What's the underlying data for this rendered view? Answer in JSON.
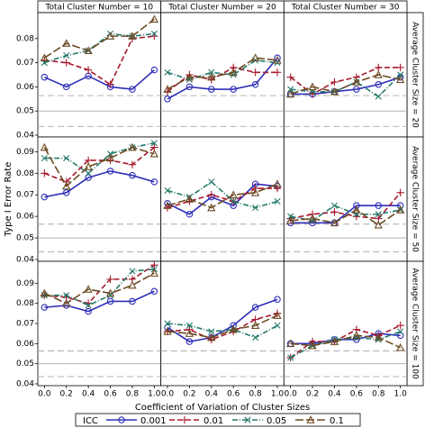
{
  "chart_data": {
    "type": "line",
    "ylabel": "Type I Error Rate",
    "xlabel": "Coefficient of Variation of Cluster Sizes",
    "legend_title": "ICC",
    "x": [
      0,
      0.2,
      0.4,
      0.6,
      0.8,
      1.0
    ],
    "xlim": [
      -0.06,
      1.06
    ],
    "xticks": [
      {
        "value": 0,
        "label": "0.0"
      },
      {
        "value": 0.2,
        "label": "0.2"
      },
      {
        "value": 0.4,
        "label": "0.4"
      },
      {
        "value": 0.6,
        "label": "0.6"
      },
      {
        "value": 0.8,
        "label": "0.8"
      },
      {
        "value": 1.0,
        "label": "1.0"
      }
    ],
    "reference_lines": [
      {
        "value": 0.05,
        "style": "solid"
      },
      {
        "value": 0.0436,
        "style": "dashed"
      },
      {
        "value": 0.0564,
        "style": "dashed"
      }
    ],
    "series": [
      {
        "name": "0.001",
        "color": "#2e2eb8",
        "marker": "circle",
        "line_style": "solid"
      },
      {
        "name": "0.01",
        "color": "#a8182e",
        "marker": "plus",
        "line_style": "dashed"
      },
      {
        "name": "0.05",
        "color": "#267a6c",
        "marker": "x",
        "line_style": "dashdot"
      },
      {
        "name": "0.1",
        "color": "#6b4a22",
        "marker": "triangle",
        "line_style": "longdash"
      }
    ],
    "columns": [
      "Total Cluster Number = 10",
      "Total Cluster Number = 20",
      "Total Cluster Number = 30"
    ],
    "rows": [
      {
        "label": "Average Cluster Size = 20",
        "ylim": [
          0.04,
          0.09
        ],
        "yticks": [
          0.04,
          0.05,
          0.06,
          0.07,
          0.08
        ],
        "panels": [
          {
            "series": [
              {
                "values": [
                  0.064,
                  0.06,
                  0.0645,
                  0.06,
                  0.059,
                  0.067
                ]
              },
              {
                "values": [
                  0.071,
                  0.07,
                  0.067,
                  0.061,
                  0.08,
                  0.081
                ]
              },
              {
                "values": [
                  0.07,
                  0.073,
                  0.075,
                  0.082,
                  0.081,
                  0.082
                ]
              },
              {
                "values": [
                  0.072,
                  0.078,
                  0.075,
                  0.081,
                  0.081,
                  0.088
                ]
              }
            ]
          },
          {
            "series": [
              {
                "values": [
                  0.055,
                  0.06,
                  0.059,
                  0.059,
                  0.061,
                  0.072
                ]
              },
              {
                "values": [
                  0.058,
                  0.065,
                  0.063,
                  0.068,
                  0.066,
                  0.066
                ]
              },
              {
                "values": [
                  0.066,
                  0.063,
                  0.066,
                  0.065,
                  0.071,
                  0.07
                ]
              },
              {
                "values": [
                  0.059,
                  0.064,
                  0.064,
                  0.066,
                  0.072,
                  0.071
                ]
              }
            ]
          },
          {
            "series": [
              {
                "values": [
                  0.057,
                  0.057,
                  0.058,
                  0.059,
                  0.061,
                  0.064
                ]
              },
              {
                "values": [
                  0.064,
                  0.057,
                  0.062,
                  0.064,
                  0.068,
                  0.068
                ]
              },
              {
                "values": [
                  0.059,
                  0.058,
                  0.058,
                  0.062,
                  0.056,
                  0.065
                ]
              },
              {
                "values": [
                  0.057,
                  0.06,
                  0.058,
                  0.062,
                  0.065,
                  0.063
                ]
              }
            ]
          }
        ]
      },
      {
        "label": "Average Cluster Size = 50",
        "ylim": [
          0.04,
          0.096
        ],
        "yticks": [
          0.04,
          0.05,
          0.06,
          0.07,
          0.08,
          0.09
        ],
        "panels": [
          {
            "series": [
              {
                "values": [
                  0.069,
                  0.071,
                  0.078,
                  0.081,
                  0.079,
                  0.076
                ]
              },
              {
                "values": [
                  0.08,
                  0.076,
                  0.086,
                  0.086,
                  0.084,
                  0.092
                ]
              },
              {
                "values": [
                  0.087,
                  0.087,
                  0.08,
                  0.089,
                  0.092,
                  0.094
                ]
              },
              {
                "values": [
                  0.092,
                  0.074,
                  0.083,
                  0.087,
                  0.092,
                  0.089
                ]
              }
            ]
          },
          {
            "series": [
              {
                "values": [
                  0.066,
                  0.061,
                  0.069,
                  0.065,
                  0.075,
                  0.074
                ]
              },
              {
                "values": [
                  0.064,
                  0.067,
                  0.07,
                  0.067,
                  0.073,
                  0.073
                ]
              },
              {
                "values": [
                  0.072,
                  0.069,
                  0.076,
                  0.067,
                  0.064,
                  0.067
                ]
              },
              {
                "values": [
                  0.065,
                  0.068,
                  0.064,
                  0.07,
                  0.071,
                  0.075
                ]
              }
            ]
          },
          {
            "series": [
              {
                "values": [
                  0.057,
                  0.057,
                  0.057,
                  0.065,
                  0.065,
                  0.065
                ]
              },
              {
                "values": [
                  0.059,
                  0.061,
                  0.062,
                  0.06,
                  0.059,
                  0.071
                ]
              },
              {
                "values": [
                  0.06,
                  0.058,
                  0.065,
                  0.061,
                  0.061,
                  0.063
                ]
              },
              {
                "values": [
                  0.058,
                  0.059,
                  0.057,
                  0.063,
                  0.056,
                  0.063
                ]
              }
            ]
          }
        ]
      },
      {
        "label": "Average Cluster Size = 100",
        "ylim": [
          0.04,
          0.1
        ],
        "yticks": [
          0.04,
          0.05,
          0.06,
          0.07,
          0.08,
          0.09
        ],
        "panels": [
          {
            "series": [
              {
                "values": [
                  0.078,
                  0.079,
                  0.076,
                  0.081,
                  0.081,
                  0.086
                ]
              },
              {
                "values": [
                  0.084,
                  0.083,
                  0.08,
                  0.092,
                  0.092,
                  0.099
                ]
              },
              {
                "values": [
                  0.084,
                  0.084,
                  0.079,
                  0.084,
                  0.096,
                  0.097
                ]
              },
              {
                "values": [
                  0.085,
                  0.08,
                  0.087,
                  0.085,
                  0.089,
                  0.095
                ]
              }
            ]
          },
          {
            "series": [
              {
                "values": [
                  0.068,
                  0.061,
                  0.063,
                  0.069,
                  0.078,
                  0.082
                ]
              },
              {
                "values": [
                  0.066,
                  0.067,
                  0.062,
                  0.066,
                  0.072,
                  0.075
                ]
              },
              {
                "values": [
                  0.07,
                  0.069,
                  0.066,
                  0.067,
                  0.063,
                  0.069
                ]
              },
              {
                "values": [
                  0.066,
                  0.065,
                  0.063,
                  0.067,
                  0.069,
                  0.074
                ]
              }
            ]
          },
          {
            "series": [
              {
                "values": [
                  0.06,
                  0.06,
                  0.062,
                  0.062,
                  0.065,
                  0.064
                ]
              },
              {
                "values": [
                  0.053,
                  0.061,
                  0.061,
                  0.067,
                  0.064,
                  0.069
                ]
              },
              {
                "values": [
                  0.053,
                  0.059,
                  0.062,
                  0.063,
                  0.062,
                  0.066
                ]
              },
              {
                "values": [
                  0.06,
                  0.059,
                  0.061,
                  0.064,
                  0.063,
                  0.058
                ]
              }
            ]
          }
        ]
      }
    ]
  }
}
